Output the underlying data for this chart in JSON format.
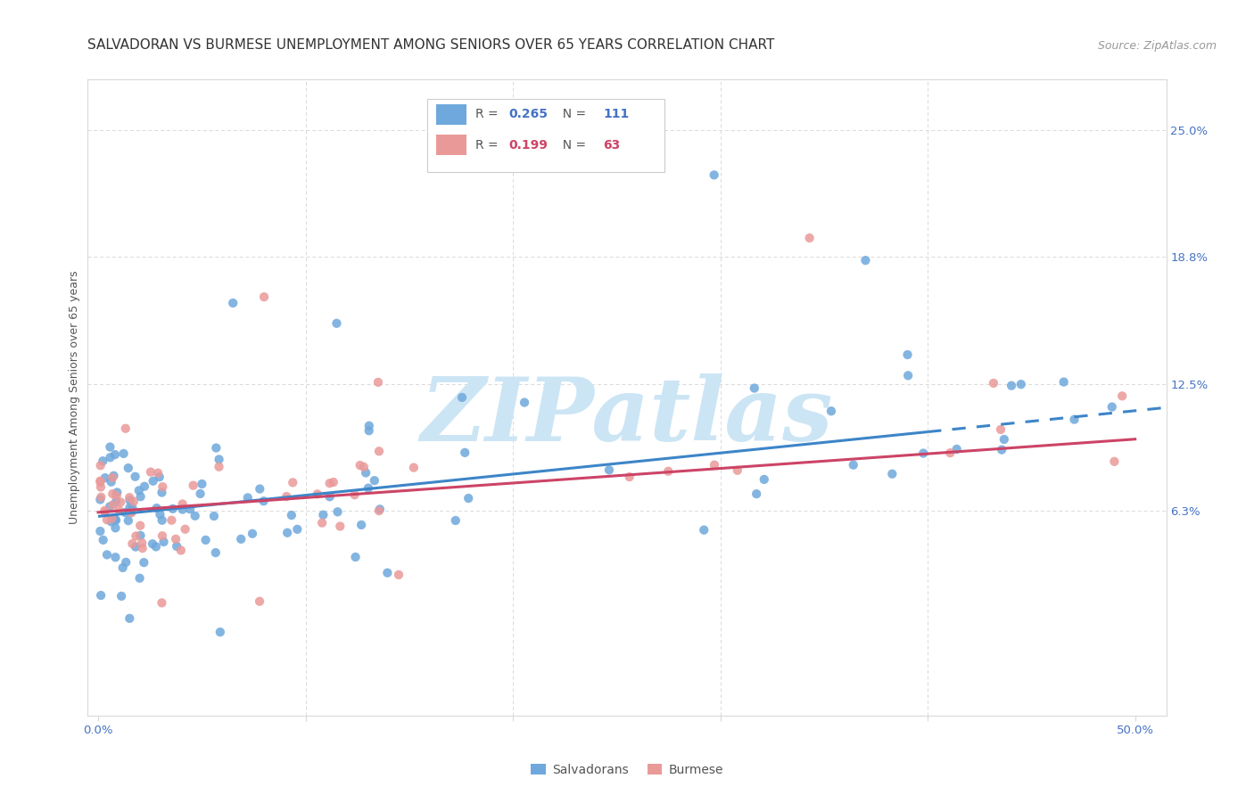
{
  "title": "SALVADORAN VS BURMESE UNEMPLOYMENT AMONG SENIORS OVER 65 YEARS CORRELATION CHART",
  "source": "Source: ZipAtlas.com",
  "ylabel_label": "Unemployment Among Seniors over 65 years",
  "xlim": [
    -0.005,
    0.515
  ],
  "ylim": [
    -0.038,
    0.275
  ],
  "x_tick_vals": [
    0.0,
    0.1,
    0.2,
    0.3,
    0.4,
    0.5
  ],
  "x_tick_labels": [
    "0.0%",
    "",
    "",
    "",
    "",
    "50.0%"
  ],
  "y_tick_vals": [
    0.063,
    0.125,
    0.188,
    0.25
  ],
  "y_tick_labels": [
    "6.3%",
    "12.5%",
    "18.8%",
    "25.0%"
  ],
  "salvadoran_color": "#6fa8dc",
  "burmese_color": "#ea9999",
  "trendline_salv_color": "#3d85c8",
  "trendline_bur_color": "#cc4466",
  "legend_salvadoran": "Salvadorans",
  "legend_burmese": "Burmese",
  "R_salvadoran": "0.265",
  "N_salvadoran": "111",
  "R_burmese": "0.199",
  "N_burmese": "63",
  "trendline_salv_x0": 0.0,
  "trendline_salv_y0": 0.06,
  "trendline_salv_x1": 0.5,
  "trendline_salv_y1": 0.112,
  "trendline_salv_solid_end": 0.4,
  "trendline_bur_x0": 0.0,
  "trendline_bur_y0": 0.062,
  "trendline_bur_x1": 0.5,
  "trendline_bur_y1": 0.098,
  "watermark_text": "ZIPatlas",
  "watermark_color": "#cce5f5",
  "grid_color": "#d9d9d9",
  "background_color": "#ffffff",
  "title_fontsize": 11,
  "axis_label_fontsize": 9,
  "tick_label_fontsize": 9.5,
  "legend_fontsize": 10,
  "source_fontsize": 9,
  "scatter_size": 55,
  "scatter_alpha": 0.85
}
